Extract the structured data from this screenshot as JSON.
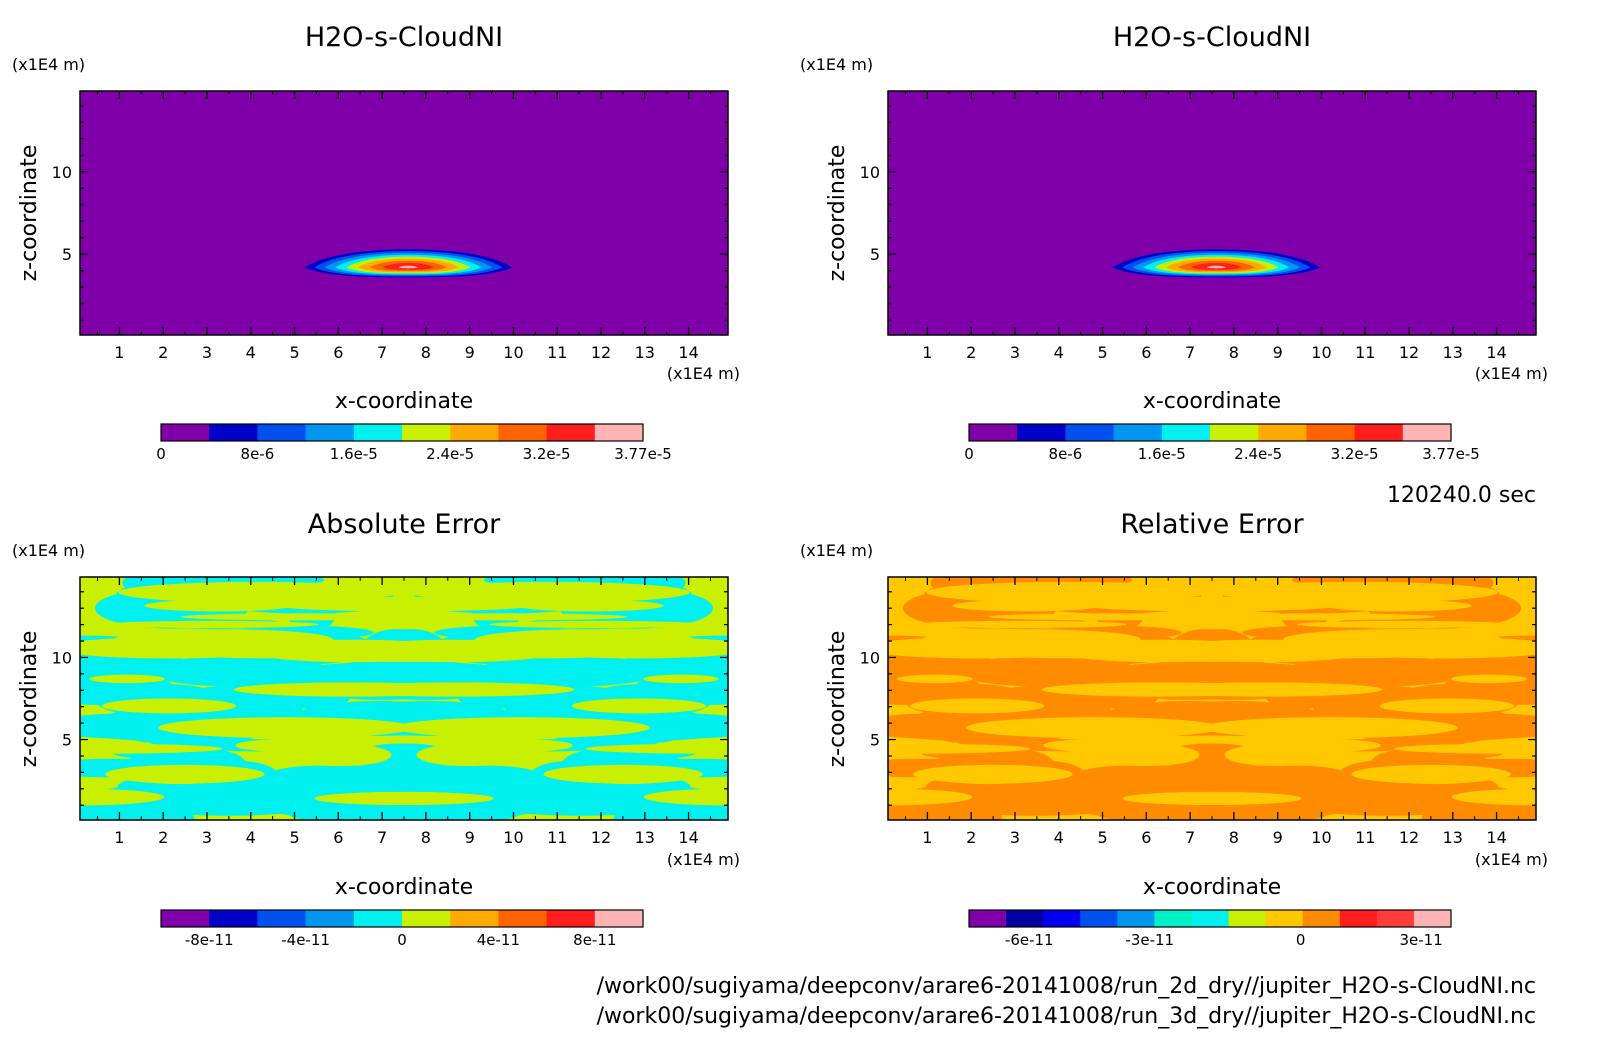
{
  "timestamp": "120240.0 sec",
  "files": [
    "/work00/sugiyama/deepconv/arare6-20141008/run_2d_dry//jupiter_H2O-s-CloudNI.nc",
    "/work00/sugiyama/deepconv/arare6-20141008/run_3d_dry//jupiter_H2O-s-CloudNI.nc"
  ],
  "chart_data": [
    {
      "type": "heatmap",
      "title": "H2O-s-CloudNI",
      "xlabel": "x-coordinate",
      "ylabel": "z-coordinate",
      "x_unit": "(x1E4 m)",
      "y_unit": "(x1E4 m)",
      "xlim": [
        0.1,
        14.9
      ],
      "ylim": [
        0.1,
        14.9
      ],
      "x_ticks": [
        1,
        2,
        3,
        4,
        5,
        6,
        7,
        8,
        9,
        10,
        11,
        12,
        13,
        14
      ],
      "y_ticks": [
        5,
        10
      ],
      "field": "cloud",
      "cloud": {
        "center_x": 7.6,
        "center_z": 4.2,
        "half_width_x": 2.6,
        "half_height_z": 1.2,
        "max": 3.77e-05
      },
      "colorbar": {
        "levels": [
          0,
          4e-06,
          8e-06,
          1.2e-05,
          1.6e-05,
          2e-05,
          2.4e-05,
          2.8e-05,
          3.2e-05,
          3.6e-05,
          3.77e-05
        ],
        "colors": [
          "#7f00a8",
          "#0000c8",
          "#0050f0",
          "#0096f0",
          "#00f0f0",
          "#c8f000",
          "#ffaa00",
          "#ff6400",
          "#ff1e1e",
          "#ffb4b4"
        ],
        "labels": [
          "0",
          "8e-6",
          "1.6e-5",
          "2.4e-5",
          "3.2e-5",
          "3.77e-5"
        ]
      }
    },
    {
      "type": "heatmap",
      "title": "H2O-s-CloudNI",
      "xlabel": "x-coordinate",
      "ylabel": "z-coordinate",
      "x_unit": "(x1E4 m)",
      "y_unit": "(x1E4 m)",
      "xlim": [
        0.1,
        14.9
      ],
      "ylim": [
        0.1,
        14.9
      ],
      "x_ticks": [
        1,
        2,
        3,
        4,
        5,
        6,
        7,
        8,
        9,
        10,
        11,
        12,
        13,
        14
      ],
      "y_ticks": [
        5,
        10
      ],
      "field": "cloud",
      "cloud": {
        "center_x": 7.6,
        "center_z": 4.2,
        "half_width_x": 2.6,
        "half_height_z": 1.2,
        "max": 3.77e-05
      },
      "colorbar": {
        "levels": [
          0,
          4e-06,
          8e-06,
          1.2e-05,
          1.6e-05,
          2e-05,
          2.4e-05,
          2.8e-05,
          3.2e-05,
          3.6e-05,
          3.77e-05
        ],
        "colors": [
          "#7f00a8",
          "#0000c8",
          "#0050f0",
          "#0096f0",
          "#00f0f0",
          "#c8f000",
          "#ffaa00",
          "#ff6400",
          "#ff1e1e",
          "#ffb4b4"
        ],
        "labels": [
          "0",
          "8e-6",
          "1.6e-5",
          "2.4e-5",
          "3.2e-5",
          "3.77e-5"
        ]
      }
    },
    {
      "type": "heatmap",
      "title": "Absolute Error",
      "xlabel": "x-coordinate",
      "ylabel": "z-coordinate",
      "x_unit": "(x1E4 m)",
      "y_unit": "(x1E4 m)",
      "xlim": [
        0.1,
        14.9
      ],
      "ylim": [
        0.1,
        14.9
      ],
      "x_ticks": [
        1,
        2,
        3,
        4,
        5,
        6,
        7,
        8,
        9,
        10,
        11,
        12,
        13,
        14
      ],
      "y_ticks": [
        5,
        10
      ],
      "field": "noise",
      "noise": {
        "seed": 11,
        "colors": [
          "#00f0f0",
          "#c8f000"
        ]
      },
      "colorbar": {
        "colors": [
          "#7f00a8",
          "#0000c8",
          "#0050f0",
          "#0096f0",
          "#00f0f0",
          "#c8f000",
          "#ffaa00",
          "#ff6400",
          "#ff1e1e",
          "#ffb4b4"
        ],
        "label_positions": [
          0.1,
          0.3,
          0.5,
          0.7,
          0.9
        ],
        "labels": [
          "-8e-11",
          "-4e-11",
          "0",
          "4e-11",
          "8e-11"
        ]
      }
    },
    {
      "type": "heatmap",
      "title": "Relative Error",
      "xlabel": "x-coordinate",
      "ylabel": "z-coordinate",
      "x_unit": "(x1E4 m)",
      "y_unit": "(x1E4 m)",
      "xlim": [
        0.1,
        14.9
      ],
      "ylim": [
        0.1,
        14.9
      ],
      "x_ticks": [
        1,
        2,
        3,
        4,
        5,
        6,
        7,
        8,
        9,
        10,
        11,
        12,
        13,
        14
      ],
      "y_ticks": [
        5,
        10
      ],
      "field": "noise",
      "noise": {
        "seed": 11,
        "colors": [
          "#ff8c00",
          "#ffc800"
        ]
      },
      "colorbar": {
        "colors": [
          "#7f00a8",
          "#0000a0",
          "#0000f0",
          "#0050f0",
          "#0096f0",
          "#00f0c8",
          "#00f0f0",
          "#c8f000",
          "#ffc800",
          "#ff8c00",
          "#ff1e1e",
          "#ff3c3c",
          "#ffb4b4"
        ],
        "label_positions": [
          0.125,
          0.375,
          0.688,
          0.938
        ],
        "labels": [
          "-6e-11",
          "-3e-11",
          "0",
          "3e-11"
        ]
      }
    }
  ]
}
